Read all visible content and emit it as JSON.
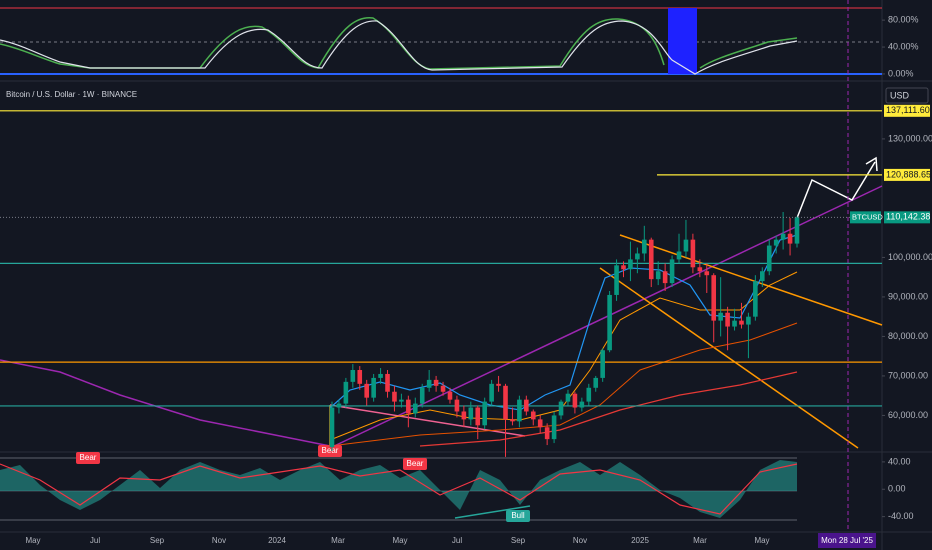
{
  "header": {
    "symbol_title": "Bitcoin / U.S. Dollar · 1W · BINANCE",
    "currency": "USD"
  },
  "stoch_panel": {
    "ylim": [
      -9,
      104
    ],
    "yticks": [
      {
        "value": 80,
        "label": "80.00%"
      },
      {
        "value": 40,
        "label": "40.00%"
      },
      {
        "value": 0,
        "label": "0.00%"
      }
    ]
  },
  "chart_data": {
    "type": "candlestick",
    "up_color": "#089981",
    "down_color": "#f23645",
    "ylim": [
      51250,
      143900
    ],
    "yticks": [
      {
        "value": 60000,
        "label": "60,000.00"
      },
      {
        "value": 70000,
        "label": "70,000.00"
      },
      {
        "value": 80000,
        "label": "80,000.00"
      },
      {
        "value": 90000,
        "label": "90,000.00"
      },
      {
        "value": 100000,
        "label": "100,000.00"
      },
      {
        "value": 130000,
        "label": "130,000.00"
      }
    ],
    "last_price": {
      "symbol": "BTCUSD",
      "value": 110142.38,
      "label": "110,142.38",
      "color": "#089981"
    },
    "levels": [
      {
        "value": 137111.6,
        "label": "137,111.60",
        "color": "#ffeb3b"
      },
      {
        "value": 120888.65,
        "label": "120,888.65",
        "color": "#ffeb3b"
      },
      {
        "value": 98500,
        "color": "#26a69a"
      },
      {
        "value": 73500,
        "color": "#ff9800"
      },
      {
        "value": 62400,
        "color": "#26a69a"
      }
    ],
    "candles": [
      [
        52000,
        63500,
        51000,
        62000
      ],
      [
        62000,
        64000,
        60500,
        63000
      ],
      [
        63000,
        69500,
        62000,
        68500
      ],
      [
        68500,
        73000,
        67000,
        71500
      ],
      [
        71500,
        72500,
        66500,
        68000
      ],
      [
        68000,
        69000,
        62500,
        64500
      ],
      [
        64500,
        70500,
        63500,
        69500
      ],
      [
        69500,
        72000,
        68000,
        70500
      ],
      [
        70500,
        71500,
        64500,
        66000
      ],
      [
        66000,
        67500,
        61000,
        63500
      ],
      [
        63500,
        65500,
        62000,
        64000
      ],
      [
        64000,
        65000,
        57000,
        60500
      ],
      [
        60500,
        64500,
        59500,
        63000
      ],
      [
        63000,
        68000,
        62000,
        67000
      ],
      [
        67000,
        71500,
        66000,
        69000
      ],
      [
        69000,
        70000,
        66000,
        67500
      ],
      [
        67500,
        68500,
        65000,
        66000
      ],
      [
        66000,
        67000,
        63000,
        64000
      ],
      [
        64000,
        65000,
        59500,
        61000
      ],
      [
        61000,
        62500,
        57000,
        59000
      ],
      [
        59000,
        63500,
        57500,
        62000
      ],
      [
        62000,
        62500,
        54000,
        57500
      ],
      [
        57500,
        64500,
        56500,
        63500
      ],
      [
        63500,
        69000,
        62500,
        68000
      ],
      [
        68000,
        70000,
        66000,
        67500
      ],
      [
        67500,
        68000,
        49500,
        59000
      ],
      [
        59000,
        62000,
        57500,
        58500
      ],
      [
        58500,
        65000,
        57000,
        64000
      ],
      [
        64000,
        65000,
        60000,
        61000
      ],
      [
        61000,
        61500,
        57500,
        59000
      ],
      [
        59000,
        60000,
        55500,
        57000
      ],
      [
        57000,
        58000,
        52500,
        54000
      ],
      [
        54000,
        61000,
        53000,
        60000
      ],
      [
        60000,
        64000,
        59000,
        63500
      ],
      [
        63500,
        66500,
        62500,
        65500
      ],
      [
        65500,
        66000,
        60500,
        62000
      ],
      [
        62000,
        64500,
        61000,
        63500
      ],
      [
        63500,
        68000,
        62500,
        67000
      ],
      [
        67000,
        70000,
        66000,
        69500
      ],
      [
        69500,
        77000,
        68500,
        76500
      ],
      [
        76500,
        91500,
        76000,
        90500
      ],
      [
        90500,
        99500,
        89000,
        98000
      ],
      [
        98000,
        99000,
        95000,
        97000
      ],
      [
        97000,
        104000,
        94000,
        99500
      ],
      [
        99500,
        102500,
        96000,
        101000
      ],
      [
        101000,
        108000,
        99000,
        104500
      ],
      [
        104500,
        105000,
        92500,
        94500
      ],
      [
        94500,
        99000,
        93000,
        96500
      ],
      [
        96500,
        98500,
        91500,
        93500
      ],
      [
        93500,
        100500,
        92500,
        99500
      ],
      [
        99500,
        106000,
        98500,
        101500
      ],
      [
        101500,
        109500,
        100000,
        104500
      ],
      [
        104500,
        106000,
        96000,
        97500
      ],
      [
        97500,
        99500,
        95000,
        96500
      ],
      [
        96500,
        98500,
        91000,
        95500
      ],
      [
        95500,
        96000,
        78500,
        84000
      ],
      [
        84000,
        95000,
        80000,
        86000
      ],
      [
        86000,
        87500,
        76500,
        82500
      ],
      [
        82500,
        87000,
        81500,
        84000
      ],
      [
        84000,
        88500,
        82000,
        83000
      ],
      [
        83000,
        86000,
        74500,
        85000
      ],
      [
        85000,
        95500,
        84000,
        94000
      ],
      [
        94000,
        97500,
        92500,
        96500
      ],
      [
        96500,
        104500,
        95500,
        103000
      ],
      [
        103000,
        105500,
        101000,
        104500
      ],
      [
        104500,
        111500,
        102000,
        106000
      ],
      [
        106000,
        110000,
        100500,
        103500
      ],
      [
        103500,
        110400,
        102500,
        110142.38
      ]
    ],
    "x_labels": [
      "May",
      "Jul",
      "Sep",
      "Nov",
      "2024",
      "Mar",
      "May",
      "Jul",
      "Sep",
      "Nov",
      "2025",
      "Mar",
      "May"
    ],
    "crosshair_date": "Mon 28 Jul '25"
  },
  "oscillator_panel": {
    "ylim": [
      -61,
      53
    ],
    "yticks": [
      {
        "value": 40,
        "label": "40.00"
      },
      {
        "value": 0,
        "label": "0.00"
      },
      {
        "value": -40,
        "label": "-40.00"
      }
    ],
    "signals": [
      "Bear",
      "Bear",
      "Bear",
      "Bull"
    ]
  }
}
